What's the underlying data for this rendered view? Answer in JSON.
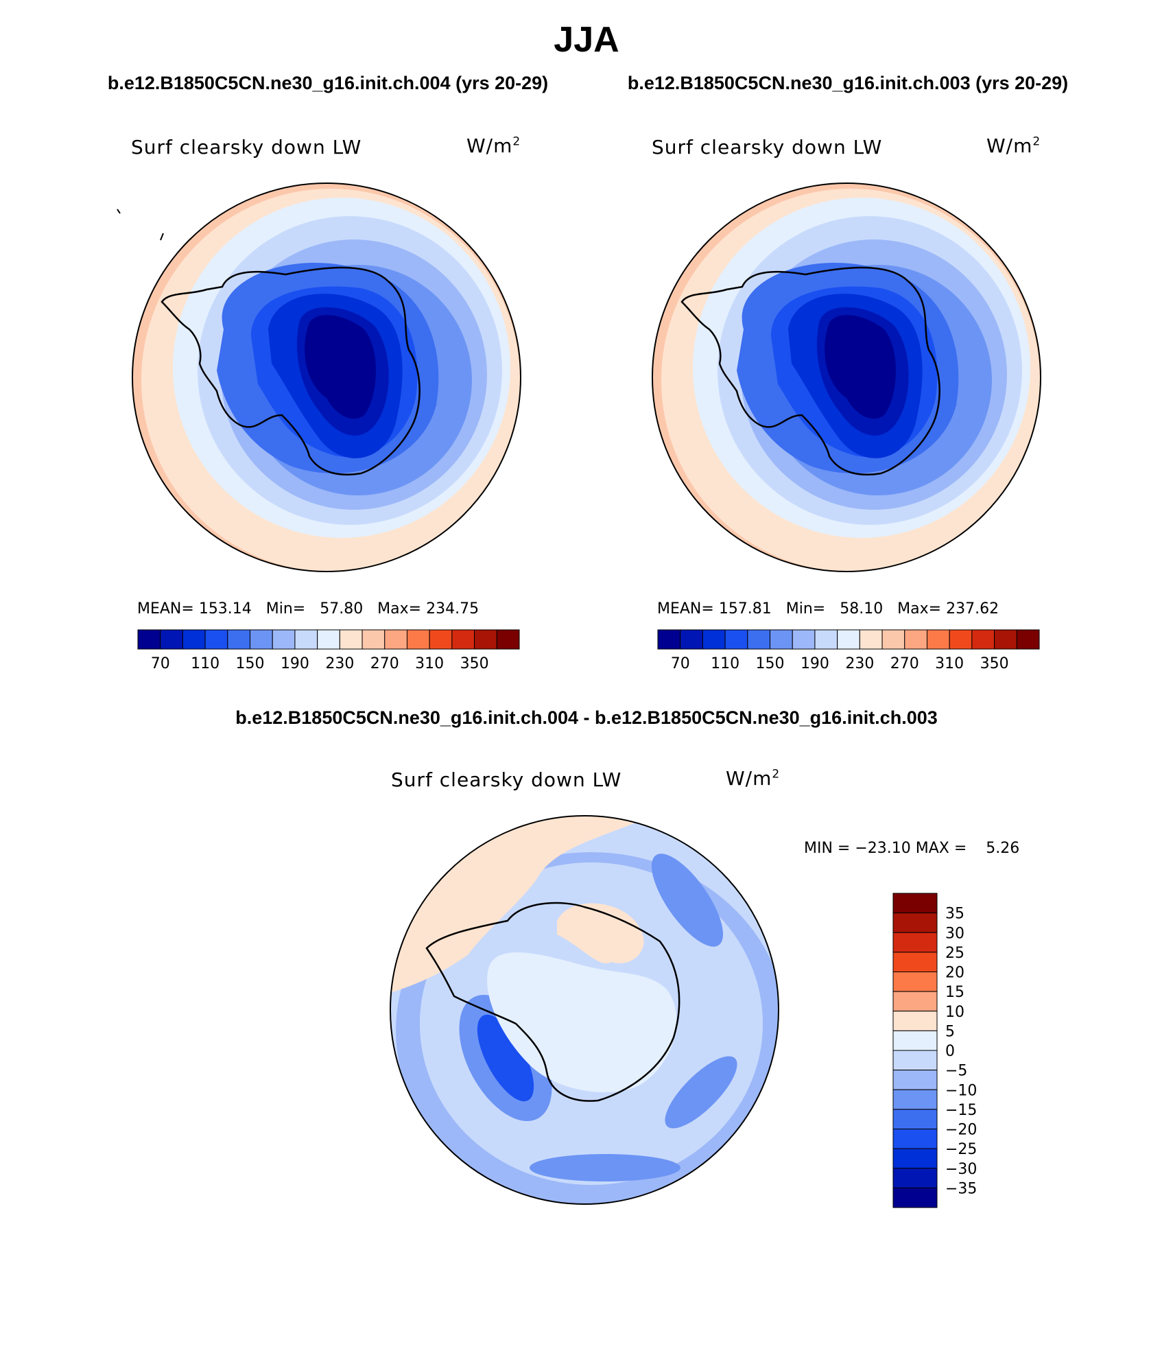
{
  "header": {
    "season": "JJA",
    "case_left": "b.e12.B1850C5CN.ne30_g16.init.ch.004 (yrs 20-29)",
    "case_right": "b.e12.B1850C5CN.ne30_g16.init.ch.003 (yrs 20-29)",
    "diff_title": "b.e12.B1850C5CN.ne30_g16.init.ch.004 - b.e12.B1850C5CN.ne30_g16.init.ch.003"
  },
  "panels": [
    {
      "variable": "Surf clearsky down LW",
      "units_base": "W/m",
      "units_exp": "2",
      "stats_text": "MEAN= 153.14   Min=   57.80   Max= 234.75",
      "mean": 153.14,
      "min": 57.8,
      "max": 234.75
    },
    {
      "variable": "Surf clearsky down LW",
      "units_base": "W/m",
      "units_exp": "2",
      "stats_text": "MEAN= 157.81   Min=   58.10   Max= 237.62",
      "mean": 157.81,
      "min": 58.1,
      "max": 237.62
    },
    {
      "variable": "Surf clearsky down LW",
      "units_base": "W/m",
      "units_exp": "2",
      "stats_text": "MIN = −23.10 MAX =    5.26",
      "min": -23.1,
      "max": 5.26
    }
  ],
  "colorbar_abs": {
    "colors": [
      "#000090",
      "#0016b4",
      "#0030d8",
      "#1a50f0",
      "#3c6ef0",
      "#6c94f4",
      "#9cb8f8",
      "#c8dafc",
      "#e4f0fe",
      "#fde4d0",
      "#fcc8ac",
      "#fca682",
      "#fc7a48",
      "#f04a1c",
      "#d42a10",
      "#a81406",
      "#7a0000"
    ],
    "tick_labels": [
      "70",
      "110",
      "150",
      "190",
      "230",
      "270",
      "310",
      "350"
    ]
  },
  "colorbar_diff": {
    "colors": [
      "#7a0000",
      "#a81406",
      "#d42a10",
      "#f04a1c",
      "#fc7a48",
      "#fca682",
      "#fde4d0",
      "#e4f0fe",
      "#c8dafc",
      "#9cb8f8",
      "#6c94f4",
      "#3c6ef0",
      "#1a50f0",
      "#0030d8",
      "#0016b4",
      "#000090"
    ],
    "tick_labels": [
      "35",
      "30",
      "25",
      "20",
      "15",
      "10",
      "5",
      "0",
      "−5",
      "−10",
      "−15",
      "−20",
      "−25",
      "−30",
      "−35"
    ]
  },
  "map_colors": {
    "warm1": "#fde4d0",
    "warm2": "#fcc8ac",
    "cool0": "#e4f0fe",
    "cool1": "#c8dafc",
    "cool2": "#9cb8f8",
    "cool3": "#6c94f4",
    "cool4": "#3c6ef0",
    "cool5": "#1a50f0",
    "cool6": "#0030d8",
    "cool7": "#0016b4",
    "cool8": "#000090"
  }
}
